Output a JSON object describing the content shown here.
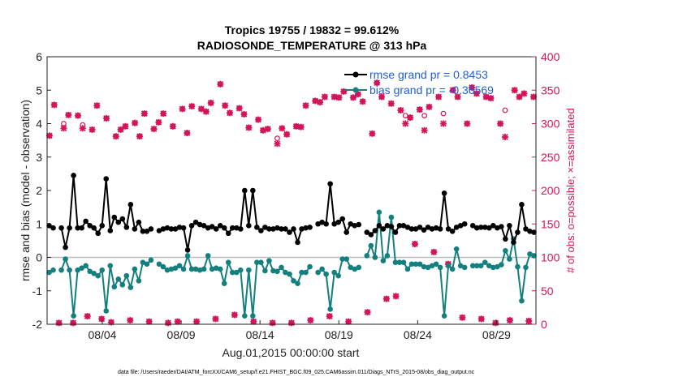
{
  "chart_data": {
    "type": "line",
    "title": "Tropics 19755 / 19832 = 99.612%",
    "subtitle": "RADIOSONDE_TEMPERATURE @ 313 hPa",
    "xlabel": "Aug.01,2015 00:00:00 start",
    "ylabel": "rmse and bias (model - observation)",
    "y2label": "# of obs: o=possible; ×=assimilated",
    "footer": "data file: /Users/raeder/DAI/ATM_forcXX/CAM6_setup/f.e21.FHIST_BGC.f09_025.CAM6assim.011/Diags_NTrS_2015-08/obs_diag_output.nc",
    "xlim": [
      0,
      62
    ],
    "ylim": [
      -2,
      6
    ],
    "y2lim": [
      0,
      400
    ],
    "x_ticks": [
      {
        "pos": 7,
        "label": "08/04"
      },
      {
        "pos": 17,
        "label": "08/09"
      },
      {
        "pos": 27,
        "label": "08/14"
      },
      {
        "pos": 37,
        "label": "08/19"
      },
      {
        "pos": 47,
        "label": "08/24"
      },
      {
        "pos": 57,
        "label": "08/29"
      }
    ],
    "y_ticks": [
      -2,
      -1,
      0,
      1,
      2,
      3,
      4,
      5,
      6
    ],
    "y2_ticks": [
      0,
      50,
      100,
      150,
      200,
      250,
      300,
      350,
      400
    ],
    "zero_line": 0,
    "legend": {
      "position": "top-right",
      "entries": [
        "rmse grand pr = 0.8453",
        "bias grand pr = -0.36569"
      ]
    },
    "colors": {
      "rmse": "#000000",
      "bias": "#13807f",
      "obs": "#d4145a",
      "zero": "#bbbbbb"
    },
    "series": [
      {
        "name": "rmse",
        "values": [
          0.95,
          0.88,
          null,
          0.88,
          0.3,
          0.88,
          2.45,
          0.88,
          0.88,
          1.08,
          0.95,
          0.88,
          0.72,
          0.95,
          2.35,
          0.8,
          1.2,
          1.05,
          1.15,
          0.9,
          1.58,
          0.85,
          1.05,
          0.78,
          0.78,
          0.85,
          null,
          0.8,
          0.85,
          0.88,
          0.85,
          0.85,
          0.9,
          0.88,
          0.22,
          0.95,
          1.05,
          0.98,
          0.95,
          0.88,
          0.92,
          0.85,
          0.95,
          0.88,
          0.72,
          0.88,
          0.88,
          0.85,
          2.0,
          0.95,
          2.0,
          0.9,
          0.8,
          0.9,
          0.85,
          0.85,
          0.88,
          0.85,
          0.85,
          0.75,
          0.85,
          0.45,
          0.85,
          0.88,
          0.9,
          null,
          1.0,
          1.05,
          1.0,
          2.2,
          1.0,
          1.05,
          1.15,
          0.75,
          1.0,
          0.95,
          0.98,
          null,
          0.75,
          0.68,
          0.8,
          0.95,
          0.85,
          0.95,
          0.92,
          0.75,
          0.95,
          0.95,
          0.9,
          0.85,
          0.85,
          0.9,
          0.82,
          0.9,
          0.85,
          0.88,
          0.85,
          1.92,
          0.85,
          0.78,
          0.9,
          0.95,
          1.0,
          null,
          0.95,
          0.88,
          0.9,
          0.9,
          0.88,
          0.95,
          0.88,
          0.92,
          0.55,
          0.95,
          0.45,
          0.75,
          1.58,
          0.85,
          0.78,
          0.75
        ]
      },
      {
        "name": "bias",
        "values": [
          -0.45,
          -0.38,
          null,
          -0.38,
          -0.05,
          -0.38,
          -1.75,
          -0.38,
          -0.32,
          -0.25,
          -0.42,
          -0.48,
          -0.55,
          -0.38,
          -1.6,
          -0.25,
          -0.88,
          -0.65,
          -0.82,
          -0.55,
          -0.9,
          -0.35,
          -0.7,
          -0.15,
          -0.2,
          -0.08,
          null,
          -0.2,
          -0.28,
          -0.38,
          -0.35,
          -0.32,
          -0.25,
          -0.35,
          0.05,
          -0.35,
          -0.35,
          -0.38,
          -0.35,
          0.05,
          -0.35,
          -0.32,
          -0.35,
          -0.78,
          -0.15,
          -0.45,
          -0.45,
          -0.38,
          -1.75,
          -0.38,
          -1.75,
          -0.15,
          -0.15,
          -0.4,
          -0.1,
          -0.4,
          -0.42,
          -0.3,
          -0.45,
          -0.5,
          -0.7,
          -0.78,
          -0.45,
          -0.45,
          -0.28,
          null,
          -0.45,
          -0.35,
          -0.5,
          -1.55,
          -0.45,
          -0.55,
          -0.05,
          -0.05,
          -0.3,
          -0.35,
          -0.3,
          null,
          0.05,
          0.35,
          0.0,
          1.35,
          -0.1,
          0.05,
          1.2,
          -0.15,
          -0.15,
          -0.15,
          -0.35,
          -0.2,
          -0.2,
          -0.2,
          -0.28,
          -0.3,
          -0.25,
          -0.2,
          -0.3,
          -1.75,
          -0.25,
          -0.35,
          0.25,
          -0.25,
          -0.3,
          null,
          -0.25,
          -0.25,
          -0.25,
          -0.15,
          -0.25,
          -0.3,
          -0.28,
          -0.22,
          0.2,
          -0.05,
          0.55,
          -0.28,
          -1.3,
          -0.3,
          0.1,
          0.05
        ]
      },
      {
        "name": "obs_possible",
        "values": [
          282,
          328,
          2,
          300,
          313,
          2,
          312,
          298,
          12,
          291,
          327,
          8,
          308,
          3,
          281,
          291,
          296,
          6,
          301,
          281,
          315,
          4,
          292,
          302,
          315,
          2,
          296,
          4,
          322,
          286,
          326,
          4,
          322,
          318,
          331,
          8,
          359,
          327,
          316,
          14,
          323,
          314,
          294,
          4,
          306,
          290,
          292,
          2,
          278,
          293,
          284,
          2,
          296,
          295,
          327,
          6,
          334,
          332,
          340,
          12,
          340,
          339,
          348,
          4,
          339,
          344,
          333,
          18,
          285,
          361,
          340,
          38,
          330,
          42,
          320,
          312,
          309,
          120,
          321,
          312,
          325,
          108,
          340,
          315,
          90,
          350,
          340,
          10,
          300,
          354,
          345,
          8,
          340,
          338,
          2,
          300,
          320,
          6,
          350,
          340,
          345,
          5,
          340
        ]
      },
      {
        "name": "obs_assimilated",
        "values": [
          282,
          328,
          2,
          293,
          313,
          2,
          312,
          293,
          12,
          291,
          327,
          8,
          308,
          3,
          281,
          291,
          296,
          6,
          301,
          281,
          315,
          4,
          292,
          302,
          315,
          2,
          296,
          4,
          322,
          286,
          326,
          4,
          322,
          318,
          331,
          8,
          359,
          327,
          316,
          14,
          323,
          314,
          294,
          4,
          306,
          290,
          292,
          2,
          270,
          293,
          284,
          2,
          296,
          295,
          327,
          6,
          334,
          332,
          340,
          12,
          340,
          339,
          348,
          4,
          339,
          344,
          333,
          18,
          285,
          361,
          340,
          38,
          330,
          42,
          320,
          300,
          309,
          120,
          321,
          290,
          325,
          108,
          340,
          300,
          90,
          350,
          340,
          10,
          300,
          354,
          345,
          8,
          340,
          338,
          2,
          300,
          280,
          6,
          350,
          340,
          345,
          5,
          340
        ]
      }
    ]
  }
}
